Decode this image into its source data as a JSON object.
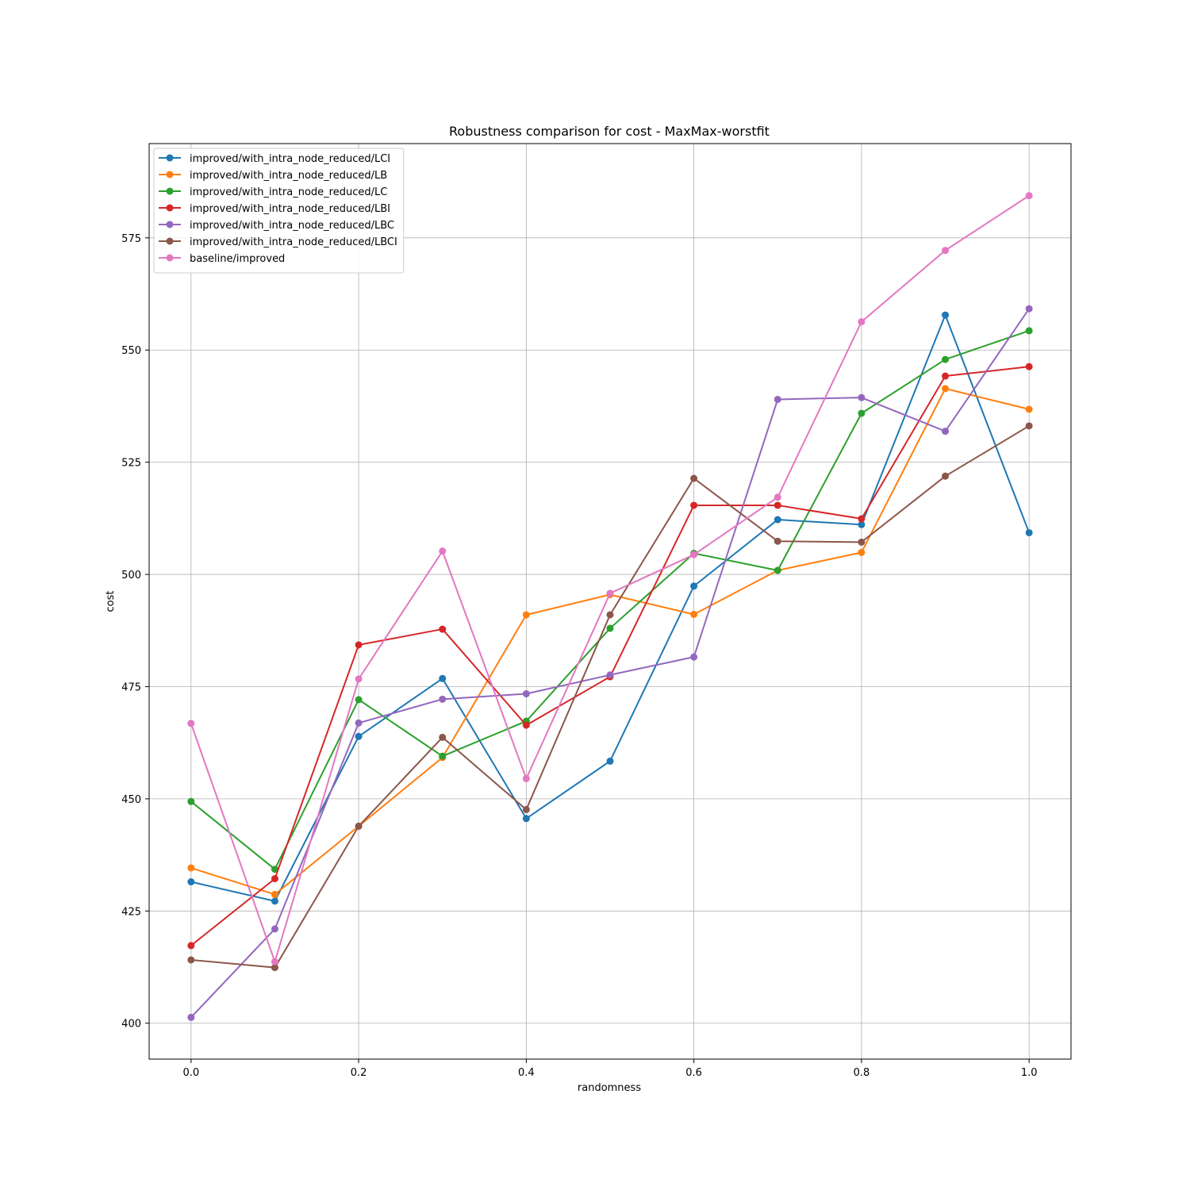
{
  "chart_data": {
    "type": "line",
    "title": "Robustness comparison for cost - MaxMax-worstfit",
    "xlabel": "randomness",
    "ylabel": "cost",
    "xlim": [
      -0.05,
      1.05
    ],
    "ylim": [
      392,
      596
    ],
    "x": [
      0.0,
      0.1,
      0.2,
      0.3,
      0.4,
      0.5,
      0.6,
      0.7,
      0.8,
      0.9,
      1.0
    ],
    "xticks": [
      0.0,
      0.2,
      0.4,
      0.6,
      0.8,
      1.0
    ],
    "xtick_labels": [
      "0.0",
      "0.2",
      "0.4",
      "0.6",
      "0.8",
      "1.0"
    ],
    "yticks": [
      400,
      425,
      450,
      475,
      500,
      525,
      550,
      575
    ],
    "ytick_labels": [
      "400",
      "425",
      "450",
      "475",
      "500",
      "525",
      "550",
      "575"
    ],
    "grid": true,
    "legend_position": "top-left",
    "series": [
      {
        "name": "improved/with_intra_node_reduced/LCI",
        "color": "#1f77b4",
        "values": [
          431.5,
          427.2,
          463.9,
          476.8,
          445.6,
          458.4,
          497.4,
          512.2,
          511.1,
          557.8,
          509.3
        ]
      },
      {
        "name": "improved/with_intra_node_reduced/LB",
        "color": "#ff7f0e",
        "values": [
          434.6,
          428.7,
          443.9,
          459.2,
          491.0,
          495.5,
          491.1,
          500.9,
          504.9,
          541.4,
          536.8
        ]
      },
      {
        "name": "improved/with_intra_node_reduced/LC",
        "color": "#2ca02c",
        "values": [
          449.4,
          434.3,
          472.1,
          459.5,
          467.3,
          488.0,
          504.7,
          500.9,
          535.9,
          547.9,
          554.3
        ]
      },
      {
        "name": "improved/with_intra_node_reduced/LBI",
        "color": "#d62728",
        "values": [
          417.3,
          432.2,
          484.3,
          487.8,
          466.4,
          477.2,
          515.4,
          515.4,
          512.4,
          544.2,
          546.3
        ]
      },
      {
        "name": "improved/with_intra_node_reduced/LBC",
        "color": "#9467bd",
        "values": [
          401.3,
          421.0,
          466.9,
          472.2,
          473.4,
          477.6,
          481.6,
          539.0,
          539.4,
          531.9,
          559.2
        ]
      },
      {
        "name": "improved/with_intra_node_reduced/LBCI",
        "color": "#8c564b",
        "values": [
          414.1,
          412.4,
          443.9,
          463.7,
          447.6,
          491.0,
          521.4,
          507.4,
          507.2,
          521.9,
          533.1
        ]
      },
      {
        "name": "baseline/improved",
        "color": "#e377c2",
        "values": [
          466.8,
          413.7,
          476.7,
          505.2,
          454.5,
          495.8,
          504.4,
          517.2,
          556.3,
          572.2,
          584.4
        ]
      }
    ]
  }
}
